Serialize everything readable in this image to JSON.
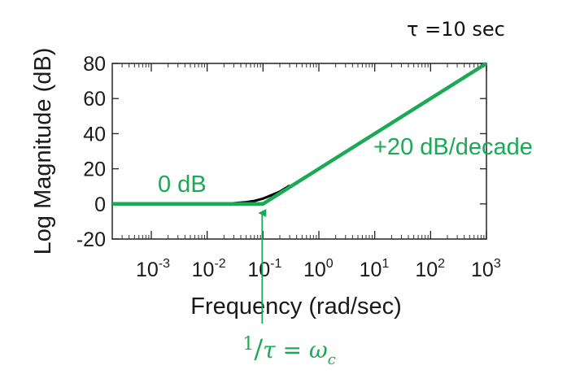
{
  "chart_data": {
    "type": "line",
    "title": "",
    "xlabel": "Frequency (rad/sec)",
    "ylabel": "Log Magnitude (dB)",
    "x_scale": "log",
    "xlim": [
      0.0002,
      1000
    ],
    "ylim": [
      -20,
      80
    ],
    "x_ticks": [
      {
        "base": "10",
        "exp": "-3",
        "value": 0.001
      },
      {
        "base": "10",
        "exp": "-2",
        "value": 0.01
      },
      {
        "base": "10",
        "exp": "-1",
        "value": 0.1
      },
      {
        "base": "10",
        "exp": "0",
        "value": 1
      },
      {
        "base": "10",
        "exp": "1",
        "value": 10
      },
      {
        "base": "10",
        "exp": "2",
        "value": 100
      },
      {
        "base": "10",
        "exp": "3",
        "value": 1000
      }
    ],
    "y_ticks": [
      "80",
      "60",
      "40",
      "20",
      "0",
      "-20"
    ],
    "y_tick_values": [
      80,
      60,
      40,
      20,
      0,
      -20
    ],
    "grid": false,
    "series": [
      {
        "role": "asymptote",
        "color": "#1aaa55",
        "x": [
          0.0002,
          0.1,
          1000
        ],
        "y": [
          0,
          0,
          80
        ]
      },
      {
        "role": "exact",
        "color": "#000000",
        "x": [
          0.03,
          0.05,
          0.07,
          0.1,
          0.14,
          0.2,
          0.3
        ],
        "y": [
          0.4,
          1.0,
          1.7,
          3.0,
          4.9,
          7.0,
          10.4
        ]
      }
    ],
    "annotations": {
      "flat_label": "0 dB",
      "slope_label": "+20 dB/decade",
      "tau_note": "τ =10 sec",
      "corner": {
        "num": "1",
        "slash": "/",
        "den": "τ",
        "eq": " = ",
        "omega": "ω",
        "sub": "c",
        "x": 0.1
      }
    },
    "colors": {
      "asymptote": "#1aaa55",
      "exact": "#000000",
      "axes": "#1a1a1a"
    }
  }
}
